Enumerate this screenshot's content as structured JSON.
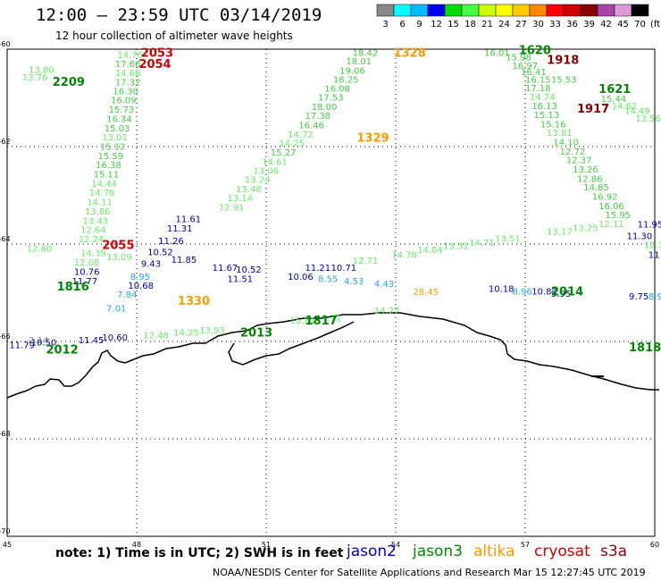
{
  "header": {
    "title": "12:00 – 23:59 UTC 03/14/2019",
    "subtitle": "12 hour collection of altimeter wave heights"
  },
  "legend": {
    "unit": "(ft)",
    "bins": [
      {
        "label": "3",
        "color": "#888888"
      },
      {
        "label": "6",
        "color": "#00ffff"
      },
      {
        "label": "9",
        "color": "#00bbff"
      },
      {
        "label": "12",
        "color": "#0000ee"
      },
      {
        "label": "15",
        "color": "#00dd00"
      },
      {
        "label": "18",
        "color": "#44ff44"
      },
      {
        "label": "21",
        "color": "#ccff00"
      },
      {
        "label": "24",
        "color": "#ffff00"
      },
      {
        "label": "27",
        "color": "#ffcc00"
      },
      {
        "label": "30",
        "color": "#ff8800"
      },
      {
        "label": "33",
        "color": "#ff0000"
      },
      {
        "label": "36",
        "color": "#cc0000"
      },
      {
        "label": "39",
        "color": "#880000"
      },
      {
        "label": "42",
        "color": "#aa44aa"
      },
      {
        "label": "45",
        "color": "#dd99dd"
      },
      {
        "label": "70",
        "color": "#000000"
      }
    ]
  },
  "axes": {
    "lon_ticks": [
      "45",
      "48",
      "51",
      "54",
      "57",
      "60"
    ],
    "lat_ticks": [
      "-60",
      "-62",
      "-64",
      "-66",
      "-68",
      "-70"
    ]
  },
  "colors": {
    "jason2": "#0000cc",
    "jason3": "#008800",
    "altika": "#ff9900",
    "cryosat": "#cc0000",
    "s3a": "#880000",
    "pt_blue": "#0000aa",
    "pt_cyan": "#22aadd",
    "pt_green": "#44cc44",
    "pt_light": "#66ee66",
    "pt_gray": "#888888",
    "pt_orange": "#ff9900"
  },
  "times": [
    {
      "label": "2053",
      "c": "cryosat",
      "lon": 48.1,
      "lat": -59.95
    },
    {
      "label": "2054",
      "c": "cryosat",
      "lon": 48.05,
      "lat": -60.18
    },
    {
      "label": "2209",
      "c": "jason3",
      "lon": 46.05,
      "lat": -60.55
    },
    {
      "label": "2055",
      "c": "cryosat",
      "lon": 47.2,
      "lat": -63.9
    },
    {
      "label": "1816",
      "c": "jason3",
      "lon": 46.15,
      "lat": -64.75
    },
    {
      "label": "1330",
      "c": "altika",
      "lon": 48.95,
      "lat": -65.05
    },
    {
      "label": "2013",
      "c": "jason3",
      "lon": 50.4,
      "lat": -65.7
    },
    {
      "label": "1817",
      "c": "jason3",
      "lon": 51.9,
      "lat": -65.45
    },
    {
      "label": "2012",
      "c": "jason3",
      "lon": 45.9,
      "lat": -66.05
    },
    {
      "label": "1328",
      "c": "altika",
      "lon": 53.95,
      "lat": -59.95
    },
    {
      "label": "1329",
      "c": "altika",
      "lon": 53.1,
      "lat": -61.7
    },
    {
      "label": "1620",
      "c": "jason3",
      "lon": 56.85,
      "lat": -59.9
    },
    {
      "label": "1918",
      "c": "s3a",
      "lon": 57.5,
      "lat": -60.1
    },
    {
      "label": "1621",
      "c": "jason3",
      "lon": 58.7,
      "lat": -60.7
    },
    {
      "label": "1917",
      "c": "s3a",
      "lon": 58.2,
      "lat": -61.1
    },
    {
      "label": "2014",
      "c": "jason3",
      "lon": 57.6,
      "lat": -64.85
    },
    {
      "label": "1818",
      "c": "jason3",
      "lon": 59.4,
      "lat": -66.0
    }
  ],
  "points": [
    {
      "v": "14.76",
      "c": "pt_light",
      "lon": 47.55,
      "lat": -60.0
    },
    {
      "v": "17.66",
      "c": "pt_green",
      "lon": 47.5,
      "lat": -60.18
    },
    {
      "v": "14.68",
      "c": "pt_light",
      "lon": 47.5,
      "lat": -60.37
    },
    {
      "v": "17.32",
      "c": "pt_green",
      "lon": 47.5,
      "lat": -60.56
    },
    {
      "v": "16.30",
      "c": "pt_green",
      "lon": 47.45,
      "lat": -60.74
    },
    {
      "v": "16.09",
      "c": "pt_green",
      "lon": 47.4,
      "lat": -60.93
    },
    {
      "v": "15.73",
      "c": "pt_green",
      "lon": 47.35,
      "lat": -61.12
    },
    {
      "v": "16.34",
      "c": "pt_green",
      "lon": 47.3,
      "lat": -61.31
    },
    {
      "v": "15.03",
      "c": "pt_green",
      "lon": 47.25,
      "lat": -61.5
    },
    {
      "v": "13.01",
      "c": "pt_light",
      "lon": 47.2,
      "lat": -61.69
    },
    {
      "v": "15.12",
      "c": "pt_green",
      "lon": 47.15,
      "lat": -61.88
    },
    {
      "v": "15.59",
      "c": "pt_green",
      "lon": 47.1,
      "lat": -62.07
    },
    {
      "v": "16.38",
      "c": "pt_green",
      "lon": 47.05,
      "lat": -62.26
    },
    {
      "v": "15.11",
      "c": "pt_green",
      "lon": 47.0,
      "lat": -62.45
    },
    {
      "v": "14.44",
      "c": "pt_light",
      "lon": 46.95,
      "lat": -62.64
    },
    {
      "v": "14.78",
      "c": "pt_light",
      "lon": 46.9,
      "lat": -62.83
    },
    {
      "v": "14.11",
      "c": "pt_light",
      "lon": 46.85,
      "lat": -63.02
    },
    {
      "v": "13.86",
      "c": "pt_light",
      "lon": 46.8,
      "lat": -63.21
    },
    {
      "v": "13.43",
      "c": "pt_light",
      "lon": 46.75,
      "lat": -63.4
    },
    {
      "v": "12.64",
      "c": "pt_light",
      "lon": 46.7,
      "lat": -63.59
    },
    {
      "v": "12.24",
      "c": "pt_light",
      "lon": 46.65,
      "lat": -63.78
    },
    {
      "v": "12.08",
      "c": "pt_light",
      "lon": 46.55,
      "lat": -64.26
    },
    {
      "v": "10.76",
      "c": "pt_blue",
      "lon": 46.55,
      "lat": -64.45
    },
    {
      "v": "11.77",
      "c": "pt_blue",
      "lon": 46.5,
      "lat": -64.64
    },
    {
      "v": "13.80",
      "c": "pt_light",
      "lon": 45.5,
      "lat": -60.3
    },
    {
      "v": "13.76",
      "c": "pt_light",
      "lon": 45.35,
      "lat": -60.46
    },
    {
      "v": "12.60",
      "c": "pt_light",
      "lon": 45.45,
      "lat": -63.97
    },
    {
      "v": "14.39",
      "c": "pt_light",
      "lon": 46.7,
      "lat": -64.06
    },
    {
      "v": "13.09",
      "c": "pt_light",
      "lon": 47.3,
      "lat": -64.15
    },
    {
      "v": "11.61",
      "c": "pt_blue",
      "lon": 48.9,
      "lat": -63.37
    },
    {
      "v": "11.31",
      "c": "pt_blue",
      "lon": 48.7,
      "lat": -63.56
    },
    {
      "v": "11.26",
      "c": "pt_blue",
      "lon": 48.5,
      "lat": -63.82
    },
    {
      "v": "10.52",
      "c": "pt_blue",
      "lon": 48.25,
      "lat": -64.05
    },
    {
      "v": "9.43",
      "c": "pt_blue",
      "lon": 48.1,
      "lat": -64.28
    },
    {
      "v": "11.85",
      "c": "pt_blue",
      "lon": 48.8,
      "lat": -64.2
    },
    {
      "v": "8.95",
      "c": "pt_cyan",
      "lon": 47.85,
      "lat": -64.55
    },
    {
      "v": "10.68",
      "c": "pt_blue",
      "lon": 47.8,
      "lat": -64.73
    },
    {
      "v": "7.84",
      "c": "pt_cyan",
      "lon": 47.55,
      "lat": -64.92
    },
    {
      "v": "7.01",
      "c": "pt_cyan",
      "lon": 47.3,
      "lat": -65.2
    },
    {
      "v": "11.67",
      "c": "pt_blue",
      "lon": 49.75,
      "lat": -64.37
    },
    {
      "v": "10.52",
      "c": "pt_blue",
      "lon": 50.3,
      "lat": -64.4
    },
    {
      "v": "11.51",
      "c": "pt_blue",
      "lon": 50.1,
      "lat": -64.6
    },
    {
      "v": "11.21",
      "c": "pt_blue",
      "lon": 51.9,
      "lat": -64.37
    },
    {
      "v": "10.06",
      "c": "pt_blue",
      "lon": 51.5,
      "lat": -64.55
    },
    {
      "v": "10.71",
      "c": "pt_blue",
      "lon": 52.5,
      "lat": -64.37
    },
    {
      "v": "8.55",
      "c": "pt_cyan",
      "lon": 52.2,
      "lat": -64.6
    },
    {
      "v": "4.53",
      "c": "pt_cyan",
      "lon": 52.8,
      "lat": -64.64
    },
    {
      "v": "4.43",
      "c": "pt_cyan",
      "lon": 53.5,
      "lat": -64.7
    },
    {
      "v": "28.45",
      "c": "pt_orange",
      "lon": 54.4,
      "lat": -64.86
    },
    {
      "v": "18.42",
      "c": "pt_green",
      "lon": 53.0,
      "lat": -59.95
    },
    {
      "v": "18.01",
      "c": "pt_green",
      "lon": 52.85,
      "lat": -60.13
    },
    {
      "v": "19.06",
      "c": "pt_green",
      "lon": 52.7,
      "lat": -60.32
    },
    {
      "v": "18.25",
      "c": "pt_green",
      "lon": 52.55,
      "lat": -60.5
    },
    {
      "v": "16.08",
      "c": "pt_green",
      "lon": 52.35,
      "lat": -60.69
    },
    {
      "v": "17.53",
      "c": "pt_green",
      "lon": 52.2,
      "lat": -60.87
    },
    {
      "v": "18.00",
      "c": "pt_green",
      "lon": 52.05,
      "lat": -61.06
    },
    {
      "v": "17.38",
      "c": "pt_green",
      "lon": 51.9,
      "lat": -61.25
    },
    {
      "v": "16.46",
      "c": "pt_green",
      "lon": 51.75,
      "lat": -61.44
    },
    {
      "v": "14.72",
      "c": "pt_light",
      "lon": 51.5,
      "lat": -61.63
    },
    {
      "v": "14.25",
      "c": "pt_light",
      "lon": 51.3,
      "lat": -61.81
    },
    {
      "v": "15.27",
      "c": "pt_green",
      "lon": 51.1,
      "lat": -62.0
    },
    {
      "v": "14.61",
      "c": "pt_light",
      "lon": 50.9,
      "lat": -62.19
    },
    {
      "v": "13.06",
      "c": "pt_light",
      "lon": 50.7,
      "lat": -62.38
    },
    {
      "v": "13.24",
      "c": "pt_light",
      "lon": 50.5,
      "lat": -62.56
    },
    {
      "v": "13.48",
      "c": "pt_light",
      "lon": 50.3,
      "lat": -62.75
    },
    {
      "v": "13.14",
      "c": "pt_light",
      "lon": 50.1,
      "lat": -62.94
    },
    {
      "v": "12.91",
      "c": "pt_light",
      "lon": 49.9,
      "lat": -63.13
    },
    {
      "v": "16.01",
      "c": "pt_green",
      "lon": 56.05,
      "lat": -59.95
    },
    {
      "v": "15.98",
      "c": "pt_green",
      "lon": 56.55,
      "lat": -60.05
    },
    {
      "v": "16.97",
      "c": "pt_green",
      "lon": 56.7,
      "lat": -60.22
    },
    {
      "v": "16.41",
      "c": "pt_green",
      "lon": 56.9,
      "lat": -60.35
    },
    {
      "v": "16.15",
      "c": "pt_green",
      "lon": 57.0,
      "lat": -60.5
    },
    {
      "v": "15.53",
      "c": "pt_green",
      "lon": 57.6,
      "lat": -60.5
    },
    {
      "v": "17.18",
      "c": "pt_green",
      "lon": 57.0,
      "lat": -60.68
    },
    {
      "v": "14.74",
      "c": "pt_light",
      "lon": 57.1,
      "lat": -60.86
    },
    {
      "v": "16.13",
      "c": "pt_green",
      "lon": 57.15,
      "lat": -61.05
    },
    {
      "v": "15.13",
      "c": "pt_green",
      "lon": 57.2,
      "lat": -61.23
    },
    {
      "v": "15.16",
      "c": "pt_green",
      "lon": 57.35,
      "lat": -61.42
    },
    {
      "v": "13.81",
      "c": "pt_light",
      "lon": 57.5,
      "lat": -61.6
    },
    {
      "v": "14.10",
      "c": "pt_green",
      "lon": 57.65,
      "lat": -61.79
    },
    {
      "v": "12.72",
      "c": "pt_green",
      "lon": 57.8,
      "lat": -61.98
    },
    {
      "v": "12.37",
      "c": "pt_green",
      "lon": 57.95,
      "lat": -62.16
    },
    {
      "v": "13.26",
      "c": "pt_green",
      "lon": 58.1,
      "lat": -62.35
    },
    {
      "v": "12.86",
      "c": "pt_green",
      "lon": 58.2,
      "lat": -62.54
    },
    {
      "v": "14.85",
      "c": "pt_green",
      "lon": 58.35,
      "lat": -62.72
    },
    {
      "v": "16.92",
      "c": "pt_green",
      "lon": 58.55,
      "lat": -62.91
    },
    {
      "v": "16.06",
      "c": "pt_green",
      "lon": 58.7,
      "lat": -63.1
    },
    {
      "v": "15.95",
      "c": "pt_green",
      "lon": 58.85,
      "lat": -63.28
    },
    {
      "v": "15.44",
      "c": "pt_green",
      "lon": 58.75,
      "lat": -60.9
    },
    {
      "v": "14.62",
      "c": "pt_light",
      "lon": 59.0,
      "lat": -61.05
    },
    {
      "v": "14.49",
      "c": "pt_light",
      "lon": 59.3,
      "lat": -61.15
    },
    {
      "v": "13.56",
      "c": "pt_light",
      "lon": 59.55,
      "lat": -61.3
    },
    {
      "v": "11.95",
      "c": "pt_blue",
      "lon": 59.6,
      "lat": -63.48
    },
    {
      "v": "11.30",
      "c": "pt_blue",
      "lon": 59.35,
      "lat": -63.72
    },
    {
      "v": "12.14",
      "c": "pt_light",
      "lon": 59.75,
      "lat": -63.9
    },
    {
      "v": "11.5",
      "c": "pt_blue",
      "lon": 59.85,
      "lat": -64.1
    },
    {
      "v": "10.18",
      "c": "pt_blue",
      "lon": 56.15,
      "lat": -64.8
    },
    {
      "v": "8.96",
      "c": "pt_cyan",
      "lon": 56.7,
      "lat": -64.85
    },
    {
      "v": "10.82",
      "c": "pt_blue",
      "lon": 57.15,
      "lat": -64.85
    },
    {
      "v": "9.95",
      "c": "pt_blue",
      "lon": 57.6,
      "lat": -64.9
    },
    {
      "v": "9.75",
      "c": "pt_blue",
      "lon": 59.4,
      "lat": -64.95
    },
    {
      "v": "8.92",
      "c": "pt_cyan",
      "lon": 59.85,
      "lat": -64.95
    },
    {
      "v": "12.71",
      "c": "pt_light",
      "lon": 53.0,
      "lat": -64.22
    },
    {
      "v": "14.78",
      "c": "pt_light",
      "lon": 53.9,
      "lat": -64.1
    },
    {
      "v": "14.04",
      "c": "pt_light",
      "lon": 54.5,
      "lat": -64.0
    },
    {
      "v": "13.31",
      "c": "pt_light",
      "lon": 55.1,
      "lat": -63.92
    },
    {
      "v": "14.71",
      "c": "pt_light",
      "lon": 55.7,
      "lat": -63.85
    },
    {
      "v": "13.51",
      "c": "pt_light",
      "lon": 56.3,
      "lat": -63.77
    },
    {
      "v": "13.17",
      "c": "pt_light",
      "lon": 57.5,
      "lat": -63.62
    },
    {
      "v": "13.25",
      "c": "pt_light",
      "lon": 58.1,
      "lat": -63.55
    },
    {
      "v": "12.11",
      "c": "pt_light",
      "lon": 58.7,
      "lat": -63.47
    },
    {
      "v": "2.14",
      "c": "pt_gray",
      "lon": 45.5,
      "lat": -65.85
    },
    {
      "v": "11.79",
      "c": "pt_blue",
      "lon": 45.05,
      "lat": -65.95
    },
    {
      "v": "10.50",
      "c": "pt_blue",
      "lon": 45.55,
      "lat": -65.9
    },
    {
      "v": "11.45",
      "c": "pt_blue",
      "lon": 46.65,
      "lat": -65.85
    },
    {
      "v": "10.60",
      "c": "pt_blue",
      "lon": 47.2,
      "lat": -65.8
    },
    {
      "v": "12.48",
      "c": "pt_light",
      "lon": 48.15,
      "lat": -65.75
    },
    {
      "v": "14.25",
      "c": "pt_light",
      "lon": 48.85,
      "lat": -65.7
    },
    {
      "v": "13.93",
      "c": "pt_light",
      "lon": 49.45,
      "lat": -65.65
    },
    {
      "v": "15.81",
      "c": "pt_light",
      "lon": 51.55,
      "lat": -65.45
    },
    {
      "v": "13.71",
      "c": "pt_light",
      "lon": 52.15,
      "lat": -65.4
    },
    {
      "v": "14.27",
      "c": "pt_light",
      "lon": 53.5,
      "lat": -65.25
    }
  ],
  "footer": {
    "note": "note:  1) Time is in UTC;  2) SWH is in feet",
    "satellites": [
      {
        "name": "jason2",
        "c": "jason2"
      },
      {
        "name": "jason3",
        "c": "jason3"
      },
      {
        "name": "altika",
        "c": "altika"
      },
      {
        "name": "cryosat",
        "c": "cryosat"
      },
      {
        "name": "s3a",
        "c": "s3a"
      }
    ],
    "credit": "NOAA/NESDIS Center for Satellite Applications and Research     Mar 15 12:27:45 UTC 2019"
  }
}
